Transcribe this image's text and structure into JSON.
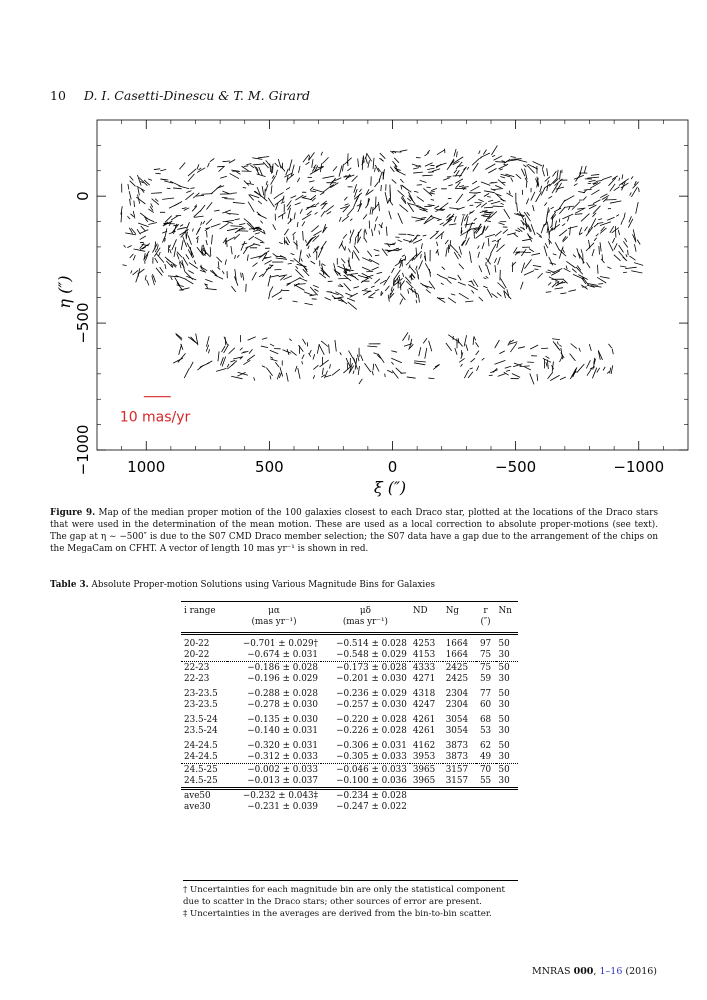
{
  "header": {
    "page_number": "10",
    "authors": "D. I. Casetti-Dinescu & T. M. Girard"
  },
  "figure": {
    "caption_label": "Figure 9.",
    "caption_text": "Map of the median proper motion of the 100 galaxies closest to each Draco star, plotted at the locations of the Draco stars that were used in the determination of the mean motion. These are used as a local correction to absolute proper-motions (see text). The gap at η ∼ −500″ is due to the S07 CMD Draco member selection; the S07 data have a gap due to the arrangement of the chips on the MegaCam on CFHT. A vector of length 10 mas yr⁻¹ is shown in red."
  },
  "chart_data": {
    "type": "vector-field",
    "xlabel": "ξ (″)",
    "ylabel": "η (″)",
    "xlim": [
      1200,
      -1200
    ],
    "ylim": [
      -1000,
      300
    ],
    "x_reversed": true,
    "x_ticks": [
      1000,
      500,
      0,
      -500,
      -1000
    ],
    "x_tick_labels": [
      "1000",
      "500",
      "0",
      "−500",
      "−1000"
    ],
    "y_ticks": [
      0,
      -500,
      -1000
    ],
    "y_tick_labels": [
      "0",
      "−500",
      "−1000"
    ],
    "upper_region": {
      "xi": [
        1100,
        -1000
      ],
      "eta": [
        180,
        -430
      ]
    },
    "lower_region": {
      "xi": [
        900,
        -900
      ],
      "eta": [
        -560,
        -720
      ]
    },
    "scale_vector": {
      "label": "10 mas/yr",
      "length_mas_yr": 10,
      "color": "#d62728"
    },
    "vector_color": "#000000"
  },
  "table": {
    "caption_label": "Table 3.",
    "caption_text": "Absolute Proper-motion Solutions using Various Magnitude Bins for Galaxies",
    "headers": {
      "irange": "i range",
      "mua": "μα",
      "mua_unit": "(mas yr⁻¹)",
      "mud": "μδ",
      "mud_unit": "(mas yr⁻¹)",
      "nd": "ND",
      "ng": "Ng",
      "r": "r",
      "r_unit": "(″)",
      "nn": "Nn"
    },
    "rows": [
      [
        "20-22",
        "−0.701 ± 0.029†",
        "−0.514 ± 0.028",
        "4253",
        "1664",
        "97",
        "50"
      ],
      [
        "20-22",
        "−0.674 ± 0.031",
        "−0.548 ± 0.029",
        "4153",
        "1664",
        "75",
        "30"
      ],
      [
        "22-23",
        "−0.186 ± 0.028",
        "−0.173 ± 0.028",
        "4333",
        "2425",
        "75",
        "50"
      ],
      [
        "22-23",
        "−0.196 ± 0.029",
        "−0.201 ± 0.030",
        "4271",
        "2425",
        "59",
        "30"
      ],
      [
        "23-23.5",
        "−0.288 ± 0.028",
        "−0.236 ± 0.029",
        "4318",
        "2304",
        "77",
        "50"
      ],
      [
        "23-23.5",
        "−0.278 ± 0.030",
        "−0.257 ± 0.030",
        "4247",
        "2304",
        "60",
        "30"
      ],
      [
        "23.5-24",
        "−0.135 ± 0.030",
        "−0.220 ± 0.028",
        "4261",
        "3054",
        "68",
        "50"
      ],
      [
        "23.5-24",
        "−0.140 ± 0.031",
        "−0.226 ± 0.028",
        "4261",
        "3054",
        "53",
        "30"
      ],
      [
        "24-24.5",
        "−0.320 ± 0.031",
        "−0.306 ± 0.031",
        "4162",
        "3873",
        "62",
        "50"
      ],
      [
        "24-24.5",
        "−0.312 ± 0.033",
        "−0.305 ± 0.033",
        "3953",
        "3873",
        "49",
        "30"
      ],
      [
        "24.5-25",
        "−0.002 ± 0.033",
        "−0.046 ± 0.033",
        "3965",
        "3157",
        "70",
        "50"
      ],
      [
        "24.5-25",
        "−0.013 ± 0.037",
        "−0.100 ± 0.036",
        "3965",
        "3157",
        "55",
        "30"
      ],
      [
        "ave50",
        "−0.232 ± 0.043‡",
        "−0.234 ± 0.028",
        "",
        "",
        "",
        ""
      ],
      [
        "ave30",
        "−0.231 ± 0.039",
        "−0.247 ± 0.022",
        "",
        "",
        "",
        ""
      ]
    ],
    "notes": [
      "† Uncertainties for each magnitude bin are only the statistical component due to scatter in the Draco stars; other sources of error are present.",
      "‡ Uncertainties in the averages are derived from the bin-to-bin scatter."
    ]
  },
  "footer": {
    "journal": "MNRAS",
    "volume": "000",
    "pages": "1–16",
    "year": "(2016)"
  }
}
